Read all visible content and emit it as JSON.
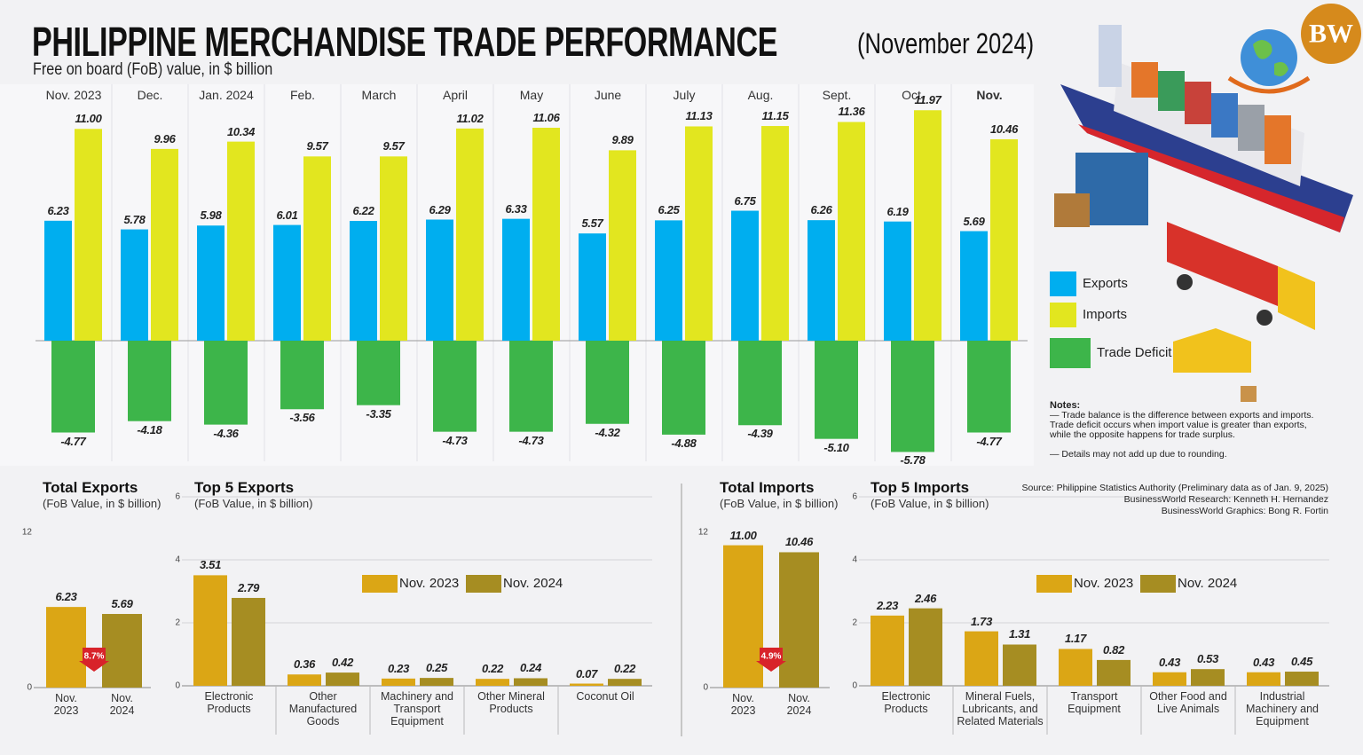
{
  "header": {
    "title": "PHILIPPINE MERCHANDISE TRADE PERFORMANCE",
    "period": "(November 2024)",
    "subtitle": "Free on board (FoB) value, in $ billion",
    "logo": "BW"
  },
  "notes": {
    "heading": "Notes:",
    "lines": [
      "— Trade balance is the difference between exports and imports. Trade deficit occurs when import value is greater than exports, while the opposite happens for trade surplus.",
      "— Details may not add up due to rounding."
    ]
  },
  "credits": [
    "Source: Philippine Statistics Authority (Preliminary data as of Jan. 9, 2025)",
    "BusinessWorld Research: Kenneth H. Hernandez",
    "BusinessWorld Graphics: Bong R. Fortin"
  ],
  "chart_data": [
    {
      "type": "bar",
      "categories": [
        "Nov. 2023",
        "Dec.",
        "Jan. 2024",
        "Feb.",
        "March",
        "April",
        "May",
        "June",
        "July",
        "Aug.",
        "Sept.",
        "Oct.",
        "Nov."
      ],
      "series": [
        {
          "name": "Exports",
          "color": "#00aeef",
          "values": [
            6.23,
            5.78,
            5.98,
            6.01,
            6.22,
            6.29,
            6.33,
            5.57,
            6.25,
            6.75,
            6.26,
            6.19,
            5.69
          ]
        },
        {
          "name": "Imports",
          "color": "#e2e61f",
          "values": [
            11.0,
            9.96,
            10.34,
            9.57,
            9.57,
            11.02,
            11.06,
            9.89,
            11.13,
            11.15,
            11.36,
            11.97,
            10.46
          ],
          "value_labels": [
            "11.00",
            "9.96",
            "10.34",
            "9.57",
            "9.57",
            "11.02",
            "11.06",
            "9.89",
            "11.13",
            "11.15",
            "11.36",
            "11.97",
            "10.46"
          ]
        },
        {
          "name": "Trade Deficit",
          "color": "#3db54a",
          "values": [
            -4.77,
            -4.18,
            -4.36,
            -3.56,
            -3.35,
            -4.73,
            -4.73,
            -4.32,
            -4.88,
            -4.39,
            -5.1,
            -5.78,
            -4.77
          ],
          "value_labels": [
            "-4.77",
            "-4.18",
            "-4.36",
            "-3.56",
            "-3.35",
            "-4.73",
            "-4.73",
            "-4.32",
            "-4.88",
            "-4.39",
            "-5.10",
            "-5.78",
            "-4.77"
          ]
        }
      ],
      "legend": "right"
    },
    {
      "type": "bar",
      "title": "Total Exports",
      "subtitle": "(FoB Value, in $ billion)",
      "categories": [
        "Nov. 2023",
        "Nov. 2024"
      ],
      "values": [
        6.23,
        5.69
      ],
      "colors": [
        "#dba615",
        "#a68d22"
      ],
      "annotation": "8.7%",
      "ylim": [
        0,
        12
      ],
      "yticks": [
        0,
        12
      ],
      "grid": false
    },
    {
      "type": "bar",
      "title": "Top 5 Exports",
      "subtitle": "(FoB Value, in $ billion)",
      "categories": [
        "Electronic Products",
        "Other Manufactured Goods",
        "Machinery and Transport Equipment",
        "Other Mineral Products",
        "Coconut Oil"
      ],
      "series": [
        {
          "name": "Nov. 2023",
          "color": "#dba615",
          "values": [
            3.51,
            0.36,
            0.23,
            0.22,
            0.07
          ]
        },
        {
          "name": "Nov. 2024",
          "color": "#a68d22",
          "values": [
            2.79,
            0.42,
            0.25,
            0.24,
            0.22
          ]
        }
      ],
      "ylim": [
        0,
        6
      ],
      "yticks": [
        0,
        2,
        4,
        6
      ],
      "grid": true
    },
    {
      "type": "bar",
      "title": "Total Imports",
      "subtitle": "(FoB Value, in $ billion)",
      "categories": [
        "Nov. 2023",
        "Nov. 2024"
      ],
      "values": [
        11.0,
        10.46
      ],
      "value_labels": [
        "11.00",
        "10.46"
      ],
      "colors": [
        "#dba615",
        "#a68d22"
      ],
      "annotation": "4.9%",
      "ylim": [
        0,
        12
      ],
      "yticks": [
        0,
        12
      ],
      "grid": false
    },
    {
      "type": "bar",
      "title": "Top 5 Imports",
      "subtitle": "(FoB Value, in $ billion)",
      "categories": [
        "Electronic Products",
        "Mineral Fuels, Lubricants, and Related Materials",
        "Transport Equipment",
        "Other Food and Live Animals",
        "Industrial Machinery and Equipment"
      ],
      "series": [
        {
          "name": "Nov. 2023",
          "color": "#dba615",
          "values": [
            2.23,
            1.73,
            1.17,
            0.43,
            0.43
          ]
        },
        {
          "name": "Nov. 2024",
          "color": "#a68d22",
          "values": [
            2.46,
            1.31,
            0.82,
            0.53,
            0.45
          ]
        }
      ],
      "ylim": [
        0,
        6
      ],
      "yticks": [
        0,
        2,
        4,
        6
      ],
      "grid": true
    }
  ]
}
